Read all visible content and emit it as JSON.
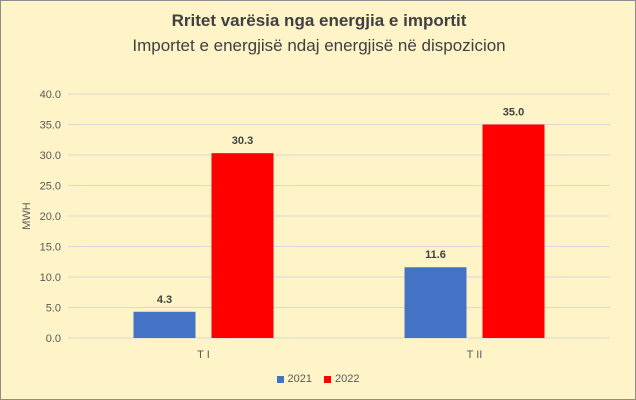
{
  "chart_data": {
    "type": "bar",
    "title": "Rritet varësia nga energjia e importit",
    "subtitle": "Importet e energjisë ndaj energjisë në dispozicion",
    "ylabel": "MWH",
    "xlabel": "",
    "ylim": [
      0,
      40
    ],
    "yticks": [
      "0.0",
      "5.0",
      "10.0",
      "15.0",
      "20.0",
      "25.0",
      "30.0",
      "35.0",
      "40.0"
    ],
    "categories": [
      "T I",
      "T II"
    ],
    "series": [
      {
        "name": "2021",
        "color": "#4472c4",
        "values": [
          4.3,
          11.6
        ],
        "labels": [
          "4.3",
          "11.6"
        ]
      },
      {
        "name": "2022",
        "color": "#ff0000",
        "values": [
          30.3,
          35.0
        ],
        "labels": [
          "30.3",
          "35.0"
        ]
      }
    ],
    "legend_position": "bottom",
    "grid": true
  }
}
